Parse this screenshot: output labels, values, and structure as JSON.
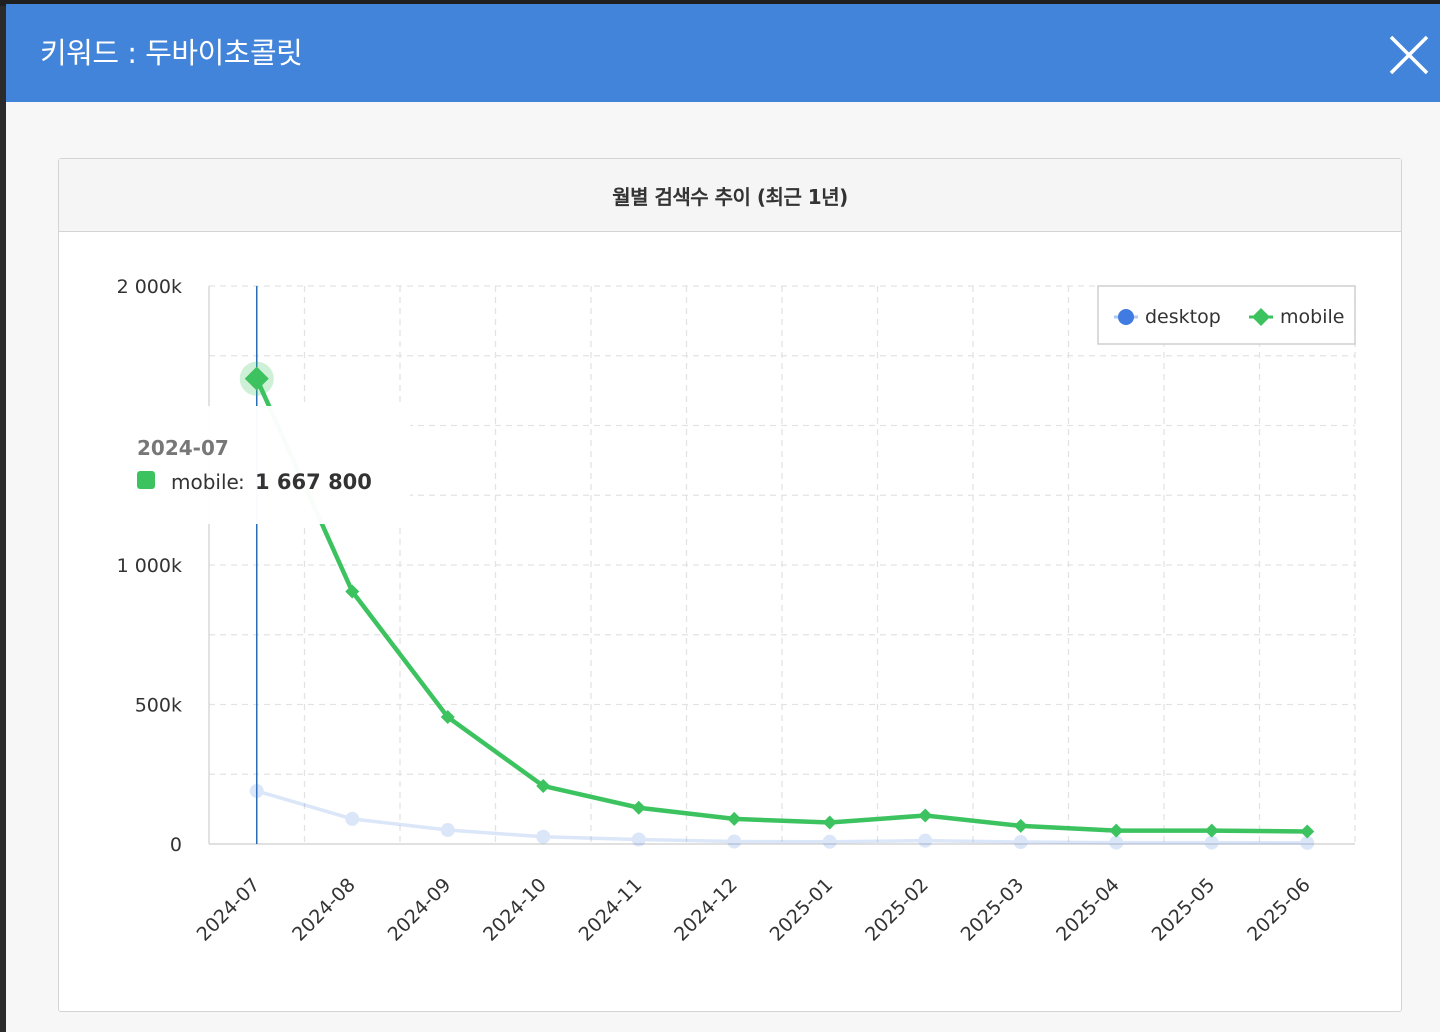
{
  "modal": {
    "title": "키워드 : 두바이초콜릿"
  },
  "card": {
    "title": "월별 검색수 추이 (최근 1년)"
  },
  "colors": {
    "header": "#4284d9",
    "desktop": "#3f7be0",
    "mobile": "#3cc360"
  },
  "chart_data": {
    "type": "line",
    "title": "월별 검색수 추이 (최근 1년)",
    "xlabel": "",
    "ylabel": "",
    "categories": [
      "2024-07",
      "2024-08",
      "2024-09",
      "2024-10",
      "2024-11",
      "2024-12",
      "2025-01",
      "2025-02",
      "2025-03",
      "2025-04",
      "2025-05",
      "2025-06"
    ],
    "y_ticks": [
      {
        "value": 0,
        "label": "0"
      },
      {
        "value": 500000,
        "label": "500k"
      },
      {
        "value": 1000000,
        "label": "1 000k"
      },
      {
        "value": 2000000,
        "label": "2 000k"
      }
    ],
    "ylim": [
      0,
      2000000
    ],
    "grid": true,
    "legend_position": "top-right",
    "series": [
      {
        "name": "desktop",
        "marker": "circle",
        "values": [
          190000,
          90000,
          50000,
          26000,
          16000,
          9000,
          8000,
          12000,
          7000,
          5000,
          5000,
          4000
        ]
      },
      {
        "name": "mobile",
        "marker": "diamond",
        "values": [
          1667800,
          905000,
          455000,
          208000,
          130000,
          90000,
          77000,
          102000,
          65000,
          48000,
          48000,
          45000
        ]
      }
    ],
    "tooltip": {
      "category": "2024-07",
      "series_name": "mobile",
      "separator": ":",
      "value_text": "1 667 800"
    }
  }
}
